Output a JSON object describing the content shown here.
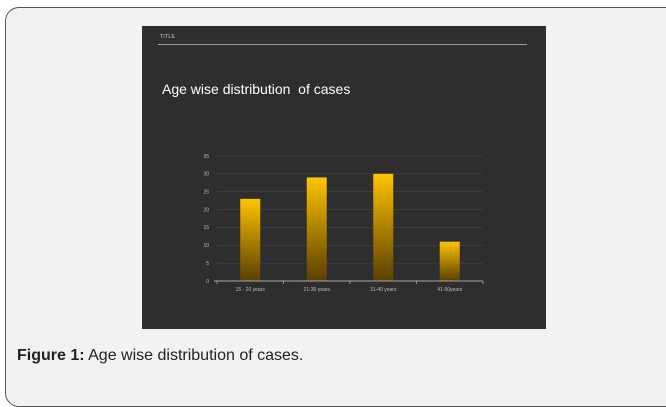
{
  "slide": {
    "header_label": "TITLE",
    "title": "Age wise distribution  of cases"
  },
  "caption": {
    "label": "Figure 1:",
    "text": " Age wise distribution of cases."
  },
  "colors": {
    "bar_top": "#ffc400",
    "bar_bottom": "#5a3e00",
    "background": "#2e2e2e",
    "gridline": "#444444",
    "axis": "#cfcfcf",
    "tick_text": "#bdbdbd"
  },
  "chart_data": {
    "type": "bar",
    "title": "Age wise distribution  of cases",
    "xlabel": "",
    "ylabel": "",
    "categories": [
      "15 - 20 years",
      "21-30 years",
      "31-40 years",
      "41-50years"
    ],
    "values": [
      23,
      29,
      30,
      11
    ],
    "ylim": [
      0,
      35
    ],
    "yticks": [
      0,
      5,
      10,
      15,
      20,
      25,
      30,
      35
    ],
    "grid": true,
    "legend": "none"
  }
}
